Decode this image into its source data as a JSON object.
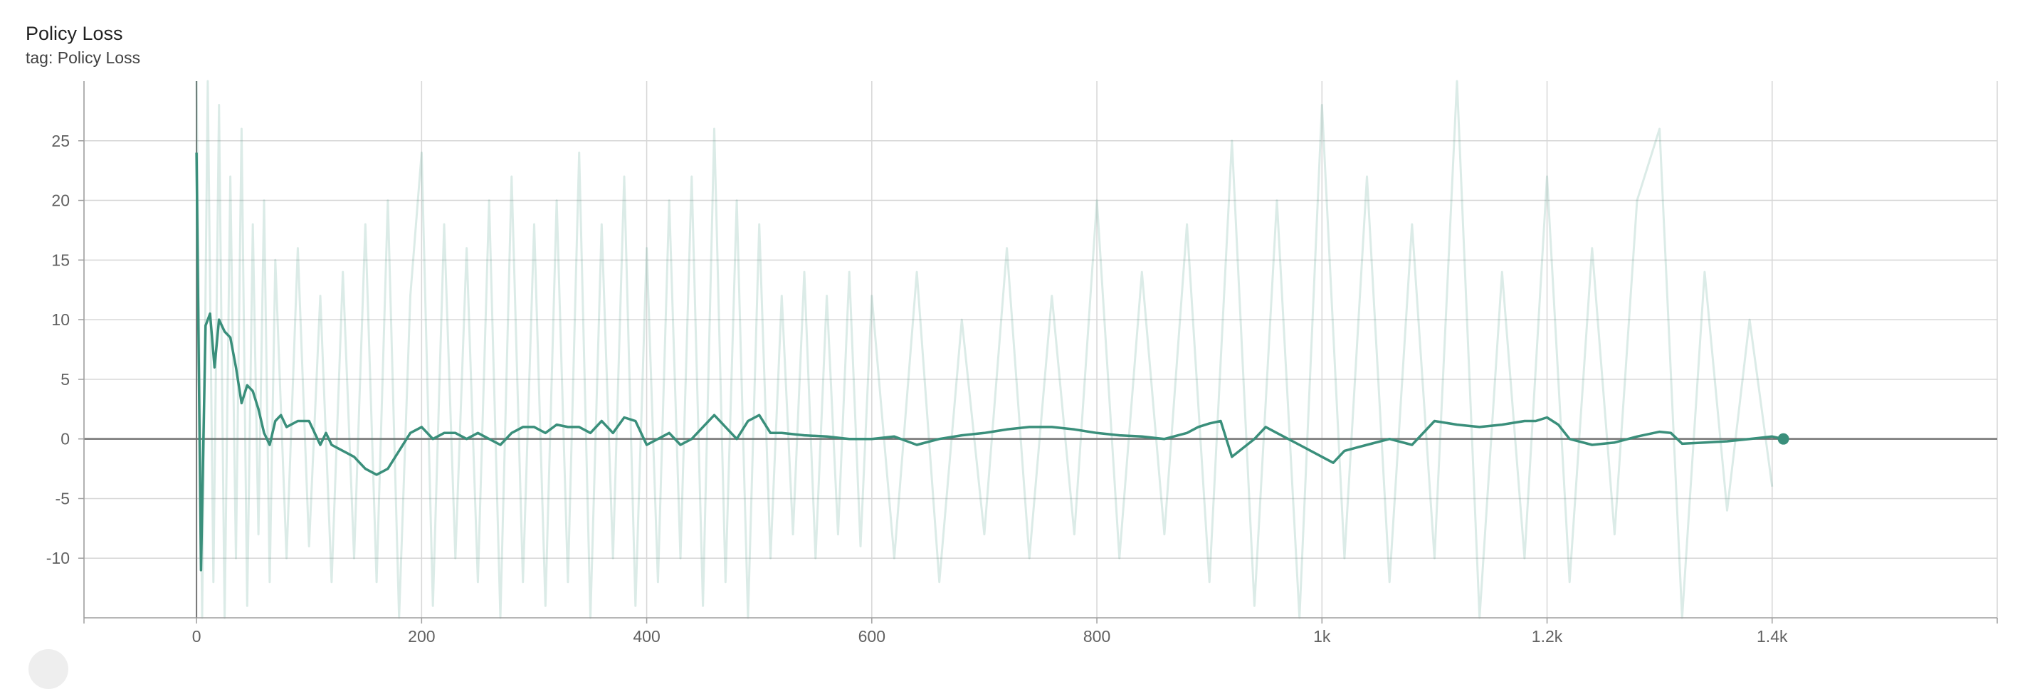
{
  "chart_data": {
    "type": "line",
    "title": "Policy Loss",
    "subtitle": "tag: Policy Loss",
    "xlabel": "",
    "ylabel": "",
    "xlim": [
      -100,
      1600
    ],
    "ylim": [
      -15,
      30
    ],
    "x_ticks": [
      {
        "value": 0,
        "label": "0"
      },
      {
        "value": 200,
        "label": "200"
      },
      {
        "value": 400,
        "label": "400"
      },
      {
        "value": 600,
        "label": "600"
      },
      {
        "value": 800,
        "label": "800"
      },
      {
        "value": 1000,
        "label": "1k"
      },
      {
        "value": 1200,
        "label": "1.2k"
      },
      {
        "value": 1400,
        "label": "1.4k"
      }
    ],
    "y_ticks": [
      {
        "value": 25,
        "label": "25"
      },
      {
        "value": 20,
        "label": "20"
      },
      {
        "value": 15,
        "label": "15"
      },
      {
        "value": 10,
        "label": "10"
      },
      {
        "value": 5,
        "label": "5"
      },
      {
        "value": 0,
        "label": "0"
      },
      {
        "value": -5,
        "label": "-5"
      },
      {
        "value": -10,
        "label": "-10"
      }
    ],
    "grid": true,
    "legend": "none",
    "colors": {
      "smoothed": "#3a8f7b",
      "raw": "#3a8f7b",
      "grid": "#d6d6d6",
      "axis": "#9e9e9e",
      "zero_line": "#757575"
    },
    "series": [
      {
        "role": "smoothed",
        "x": [
          0,
          4,
          8,
          12,
          16,
          20,
          25,
          30,
          35,
          40,
          45,
          50,
          55,
          60,
          65,
          70,
          75,
          80,
          90,
          100,
          110,
          115,
          120,
          130,
          140,
          150,
          160,
          170,
          180,
          190,
          200,
          210,
          220,
          230,
          240,
          250,
          260,
          270,
          280,
          290,
          300,
          310,
          320,
          330,
          340,
          350,
          360,
          370,
          380,
          390,
          400,
          410,
          420,
          430,
          440,
          450,
          460,
          470,
          480,
          490,
          500,
          510,
          520,
          540,
          560,
          580,
          600,
          620,
          640,
          660,
          680,
          700,
          720,
          740,
          760,
          780,
          800,
          820,
          840,
          860,
          880,
          890,
          900,
          910,
          920,
          940,
          950,
          960,
          980,
          1000,
          1010,
          1020,
          1040,
          1060,
          1080,
          1100,
          1120,
          1140,
          1160,
          1180,
          1190,
          1200,
          1210,
          1220,
          1240,
          1260,
          1280,
          1300,
          1310,
          1320,
          1340,
          1360,
          1380,
          1400,
          1410
        ],
        "y": [
          24,
          -11,
          9.5,
          10.5,
          6,
          10,
          9,
          8.5,
          6,
          3,
          4.5,
          4,
          2.5,
          0.5,
          -0.5,
          1.5,
          2,
          1,
          1.5,
          1.5,
          -0.5,
          0.5,
          -0.5,
          -1,
          -1.5,
          -2.5,
          -3,
          -2.5,
          -1,
          0.5,
          1,
          0,
          0.5,
          0.5,
          0,
          0.5,
          0,
          -0.5,
          0.5,
          1,
          1,
          0.5,
          1.2,
          1,
          1,
          0.5,
          1.5,
          0.5,
          1.8,
          1.5,
          -0.5,
          0,
          0.5,
          -0.5,
          0,
          1,
          2,
          1,
          0,
          1.5,
          2,
          0.5,
          0.5,
          0.3,
          0.2,
          0,
          0,
          0.2,
          -0.5,
          0,
          0.3,
          0.5,
          0.8,
          1,
          1,
          0.8,
          0.5,
          0.3,
          0.2,
          0,
          0.5,
          1,
          1.3,
          1.5,
          -1.5,
          0,
          1,
          0.5,
          -0.5,
          -1.5,
          -2,
          -1,
          -0.5,
          0,
          -0.5,
          1.5,
          1.2,
          1,
          1.2,
          1.5,
          1.5,
          1.8,
          1.2,
          0,
          -0.5,
          -0.3,
          0.2,
          0.6,
          0.5,
          -0.4,
          -0.3,
          -0.2,
          0,
          0.2,
          0
        ]
      },
      {
        "role": "raw",
        "x": [
          0,
          5,
          10,
          15,
          20,
          25,
          30,
          35,
          40,
          45,
          50,
          55,
          60,
          65,
          70,
          80,
          90,
          100,
          110,
          120,
          130,
          140,
          150,
          160,
          170,
          180,
          190,
          200,
          210,
          220,
          230,
          240,
          250,
          260,
          270,
          280,
          290,
          300,
          310,
          320,
          330,
          340,
          350,
          360,
          370,
          380,
          390,
          400,
          410,
          420,
          430,
          440,
          450,
          460,
          470,
          480,
          490,
          500,
          510,
          520,
          530,
          540,
          550,
          560,
          570,
          580,
          590,
          600,
          620,
          640,
          660,
          680,
          700,
          720,
          740,
          760,
          780,
          800,
          820,
          840,
          860,
          880,
          900,
          920,
          940,
          960,
          980,
          1000,
          1020,
          1040,
          1060,
          1080,
          1100,
          1120,
          1140,
          1160,
          1180,
          1200,
          1220,
          1240,
          1260,
          1280,
          1300,
          1320,
          1340,
          1360,
          1380,
          1400
        ],
        "y": [
          30,
          -15,
          30,
          -12,
          28,
          -15,
          22,
          -10,
          26,
          -14,
          18,
          -8,
          20,
          -12,
          15,
          -10,
          16,
          -9,
          12,
          -12,
          14,
          -10,
          18,
          -12,
          20,
          -15,
          12,
          24,
          -14,
          18,
          -10,
          16,
          -12,
          20,
          -15,
          22,
          -12,
          18,
          -14,
          20,
          -12,
          24,
          -15,
          18,
          -10,
          22,
          -14,
          16,
          -12,
          20,
          -10,
          22,
          -14,
          26,
          -12,
          20,
          -15,
          18,
          -10,
          12,
          -8,
          14,
          -10,
          12,
          -8,
          14,
          -9,
          12,
          -10,
          14,
          -12,
          10,
          -8,
          16,
          -10,
          12,
          -8,
          20,
          -10,
          14,
          -8,
          18,
          -12,
          25,
          -14,
          20,
          -15,
          28,
          -10,
          22,
          -12,
          18,
          -10,
          30,
          -15,
          14,
          -10,
          22,
          -12,
          16,
          -8,
          20,
          26,
          -15,
          14,
          -6,
          10,
          -4
        ]
      }
    ]
  }
}
